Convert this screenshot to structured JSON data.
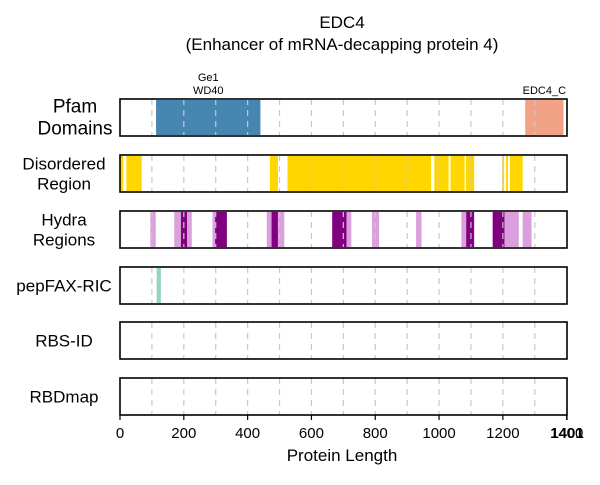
{
  "chart_data": {
    "type": "bar",
    "title": "EDC4",
    "subtitle": "(Enhancer of mRNA-decapping protein 4)",
    "xlabel": "Protein Length",
    "xlim": [
      0,
      1401
    ],
    "xticks": [
      0,
      200,
      400,
      600,
      800,
      1000,
      1200,
      1400
    ],
    "end_tick": 1401,
    "grid": true,
    "colors": {
      "pfam_ge1": "#4786b0",
      "pfam_edc4": "#f2a285",
      "disordered": "#ffd600",
      "hydra_light": "#dc9fdd",
      "hydra_dark": "#800080",
      "pepfax": "#93d4c1"
    },
    "tracks": [
      {
        "label": "Pfam Domains",
        "segments": [
          {
            "name": "Ge1 WD40",
            "label_lines": [
              "Ge1",
              "WD40"
            ],
            "start": 113,
            "end": 440,
            "color": "#4786b0"
          },
          {
            "name": "EDC4_C",
            "label_lines": [
              "EDC4_C"
            ],
            "start": 1270,
            "end": 1390,
            "color": "#f2a285"
          }
        ]
      },
      {
        "label": "Disordered Region",
        "segments": [
          {
            "start": 1,
            "end": 10,
            "color": "#ffd600"
          },
          {
            "start": 20,
            "end": 68,
            "color": "#ffd600"
          },
          {
            "start": 470,
            "end": 495,
            "color": "#ffd600"
          },
          {
            "start": 525,
            "end": 975,
            "color": "#ffd600"
          },
          {
            "start": 985,
            "end": 1030,
            "color": "#ffd600"
          },
          {
            "start": 1036,
            "end": 1080,
            "color": "#ffd600"
          },
          {
            "start": 1084,
            "end": 1110,
            "color": "#ffd600"
          },
          {
            "start": 1198,
            "end": 1204,
            "color": "#ffd600"
          },
          {
            "start": 1210,
            "end": 1216,
            "color": "#ffd600"
          },
          {
            "start": 1222,
            "end": 1262,
            "color": "#ffd600"
          }
        ]
      },
      {
        "label": "Hydra Regions",
        "segments": [
          {
            "start": 95,
            "end": 112,
            "color": "#dc9fdd"
          },
          {
            "start": 170,
            "end": 188,
            "color": "#dc9fdd"
          },
          {
            "start": 190,
            "end": 210,
            "color": "#800080"
          },
          {
            "start": 210,
            "end": 225,
            "color": "#dc9fdd"
          },
          {
            "start": 290,
            "end": 298,
            "color": "#dc9fdd"
          },
          {
            "start": 298,
            "end": 335,
            "color": "#800080"
          },
          {
            "start": 460,
            "end": 475,
            "color": "#dc9fdd"
          },
          {
            "start": 475,
            "end": 495,
            "color": "#800080"
          },
          {
            "start": 495,
            "end": 515,
            "color": "#dc9fdd"
          },
          {
            "start": 665,
            "end": 710,
            "color": "#800080"
          },
          {
            "start": 710,
            "end": 725,
            "color": "#dc9fdd"
          },
          {
            "start": 790,
            "end": 812,
            "color": "#dc9fdd"
          },
          {
            "start": 928,
            "end": 945,
            "color": "#dc9fdd"
          },
          {
            "start": 1070,
            "end": 1085,
            "color": "#dc9fdd"
          },
          {
            "start": 1085,
            "end": 1110,
            "color": "#800080"
          },
          {
            "start": 1168,
            "end": 1205,
            "color": "#800080"
          },
          {
            "start": 1205,
            "end": 1250,
            "color": "#dc9fdd"
          },
          {
            "start": 1262,
            "end": 1290,
            "color": "#dc9fdd"
          }
        ]
      },
      {
        "label": "pepFAX-RIC",
        "segments": [
          {
            "start": 115,
            "end": 128,
            "color": "#93d4c1"
          }
        ]
      },
      {
        "label": "RBS-ID",
        "segments": []
      },
      {
        "label": "RBDmap",
        "segments": []
      }
    ]
  }
}
